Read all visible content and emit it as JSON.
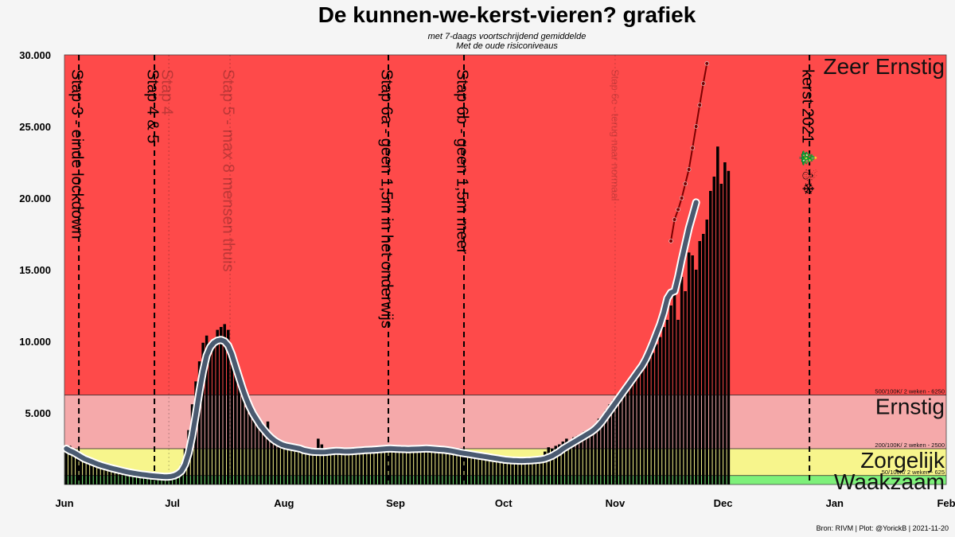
{
  "chart_data": {
    "type": "bar",
    "title": "De kunnen-we-kerst-vieren? grafiek",
    "subtitle_lines": [
      "met 7-daags voortschrijdend gemiddelde",
      "Met de oude risiconiveaus"
    ],
    "source": "Bron: RIVM | Plot: @YorickB  |  2021-11-20",
    "x_range": [
      "2021-06-01",
      "2022-02-01"
    ],
    "ylim": [
      0,
      30000
    ],
    "yticks": [
      {
        "value": 5000,
        "label": "5.000"
      },
      {
        "value": 10000,
        "label": "10.000"
      },
      {
        "value": 15000,
        "label": "15.000"
      },
      {
        "value": 20000,
        "label": "20.000"
      },
      {
        "value": 25000,
        "label": "25.000"
      },
      {
        "value": 30000,
        "label": "30.000"
      }
    ],
    "xticks": [
      {
        "date": "2021-06-01",
        "label": "Jun"
      },
      {
        "date": "2021-07-01",
        "label": "Jul"
      },
      {
        "date": "2021-08-01",
        "label": "Aug"
      },
      {
        "date": "2021-09-01",
        "label": "Sep"
      },
      {
        "date": "2021-10-01",
        "label": "Oct"
      },
      {
        "date": "2021-11-01",
        "label": "Nov"
      },
      {
        "date": "2021-12-01",
        "label": "Dec"
      },
      {
        "date": "2022-01-01",
        "label": "Jan"
      },
      {
        "date": "2022-02-01",
        "label": "Feb"
      }
    ],
    "risk_levels": [
      {
        "name": "Waakzaam",
        "from": 0,
        "to": 625,
        "color": "#7ef07a",
        "sublabel": "50/100K/ 2 weken - 625"
      },
      {
        "name": "Zorgelijk",
        "from": 625,
        "to": 2500,
        "color": "#f7f58c",
        "sublabel": "200/100K/ 2 weken - 2500"
      },
      {
        "name": "Ernstig",
        "from": 2500,
        "to": 6250,
        "color": "#f5a9aa",
        "sublabel": "500/100K/ 2 weken - 6250"
      },
      {
        "name": "Zeer Ernstig",
        "from": 6250,
        "to": 30000,
        "color": "#fe4a4a",
        "sublabel": ""
      }
    ],
    "events": [
      {
        "date": "2021-06-05",
        "label": "Stap 3 - einde lockdown",
        "style": "dashed",
        "color": "#000000",
        "opacity": 1
      },
      {
        "date": "2021-06-26",
        "label": "Stap 4 & 5",
        "style": "dashed",
        "color": "#000000",
        "opacity": 1
      },
      {
        "date": "2021-06-30",
        "label": "Stap 4",
        "style": "dotted",
        "color": "#000000",
        "opacity": 0.25
      },
      {
        "date": "2021-07-17",
        "label": "Stap 5 - max 8 mensen thuis",
        "style": "dotted",
        "color": "#000000",
        "opacity": 0.25
      },
      {
        "date": "2021-08-30",
        "label": "Stap 6a - geen 1,5m in het onderwijs",
        "style": "dashed",
        "color": "#000000",
        "opacity": 1
      },
      {
        "date": "2021-09-20",
        "label": "Stap 6b - geen 1,5m meer",
        "style": "dashed",
        "color": "#000000",
        "opacity": 1
      },
      {
        "date": "2021-11-01",
        "label": "Stap 6c - terug naar normaal",
        "style": "dotted",
        "color": "#000000",
        "opacity": 0.2
      },
      {
        "date": "2021-12-25",
        "label": "kerst 2021  🎄☃❄",
        "style": "dashed",
        "color": "#000000",
        "opacity": 1
      }
    ],
    "daily_cases": {
      "start_date": "2021-06-01",
      "values": [
        2300,
        2700,
        2200,
        1950,
        1850,
        1700,
        1650,
        1550,
        1450,
        1350,
        1250,
        1150,
        1050,
        980,
        920,
        860,
        800,
        760,
        700,
        660,
        630,
        600,
        580,
        560,
        540,
        520,
        480,
        430,
        380,
        400,
        560,
        820,
        1400,
        2500,
        3800,
        5600,
        7200,
        8600,
        9900,
        10400,
        9200,
        10000,
        10800,
        11000,
        11200,
        10800,
        9600,
        8800,
        7400,
        6200,
        5400,
        4900,
        4600,
        4300,
        4100,
        4000,
        4400,
        3400,
        3300,
        3100,
        2900,
        2800,
        2700,
        2600,
        2550,
        2450,
        2500,
        2550,
        2400,
        2300,
        3200,
        2800,
        2500,
        2450,
        2400,
        2350,
        2300,
        2300,
        2300,
        2500,
        2400,
        2350,
        2350,
        2300,
        2400,
        2450,
        2500,
        2600,
        2700,
        2500,
        2450,
        2650,
        2600,
        2500,
        2450,
        2400,
        2700,
        2500,
        2450,
        2400,
        2650,
        2700,
        2500,
        2650,
        2500,
        2450,
        2400,
        2400,
        2300,
        2100,
        2200,
        2000,
        1900,
        1850,
        1800,
        1750,
        1700,
        1650,
        1600,
        1650,
        1700,
        1650,
        1600,
        1600,
        1650,
        1650,
        1600,
        1650,
        1700,
        1750,
        1800,
        1900,
        2000,
        2300,
        2600,
        2500,
        2700,
        2800,
        3000,
        3200,
        2900,
        3300,
        3400,
        3500,
        3700,
        3600,
        3800,
        4200,
        4600,
        4800,
        5200,
        5600,
        5900,
        6200,
        6500,
        6700,
        7000,
        7200,
        7400,
        7700,
        8000,
        8400,
        8800,
        9200,
        9800,
        10300,
        11000,
        11500,
        12500,
        13500,
        11500,
        14500,
        13500,
        16200,
        16000,
        15000,
        17000,
        17500,
        18500,
        20500,
        21500,
        23600,
        21000,
        22500,
        21900
      ]
    },
    "moving_average": {
      "start_date": "2021-06-01",
      "values": [
        2500,
        2350,
        2250,
        2100,
        1950,
        1800,
        1700,
        1600,
        1500,
        1400,
        1320,
        1250,
        1180,
        1110,
        1050,
        990,
        930,
        870,
        820,
        780,
        740,
        700,
        670,
        640,
        610,
        590,
        570,
        550,
        540,
        560,
        620,
        740,
        950,
        1400,
        2200,
        3400,
        4900,
        6500,
        7900,
        9000,
        9600,
        9900,
        10050,
        10100,
        10000,
        9700,
        9100,
        8300,
        7500,
        6700,
        6000,
        5400,
        4900,
        4500,
        4100,
        3800,
        3500,
        3250,
        3050,
        2900,
        2780,
        2700,
        2650,
        2600,
        2550,
        2500,
        2400,
        2350,
        2300,
        2280,
        2270,
        2260,
        2270,
        2300,
        2330,
        2350,
        2340,
        2320,
        2310,
        2320,
        2340,
        2360,
        2380,
        2400,
        2410,
        2420,
        2440,
        2460,
        2480,
        2500,
        2510,
        2500,
        2490,
        2480,
        2470,
        2460,
        2470,
        2480,
        2490,
        2500,
        2510,
        2500,
        2480,
        2460,
        2440,
        2420,
        2390,
        2350,
        2300,
        2250,
        2200,
        2160,
        2120,
        2080,
        2040,
        2000,
        1960,
        1920,
        1880,
        1840,
        1800,
        1760,
        1720,
        1700,
        1680,
        1670,
        1660,
        1660,
        1670,
        1680,
        1700,
        1720,
        1750,
        1800,
        1900,
        2000,
        2150,
        2300,
        2500,
        2650,
        2800,
        2950,
        3100,
        3250,
        3400,
        3550,
        3700,
        3900,
        4150,
        4450,
        4800,
        5150,
        5500,
        5850,
        6200,
        6550,
        6900,
        7250,
        7600,
        7950,
        8300,
        8750,
        9300,
        9900,
        10550,
        11200,
        12000,
        13000,
        13400,
        13500,
        14500,
        15700,
        16800,
        17900,
        18800,
        19700
      ]
    },
    "projection": {
      "start_date": "2021-11-16",
      "values": [
        17000,
        18500,
        19200,
        20000,
        21000,
        22000,
        23500,
        25000,
        26500,
        28000,
        29400
      ]
    }
  }
}
